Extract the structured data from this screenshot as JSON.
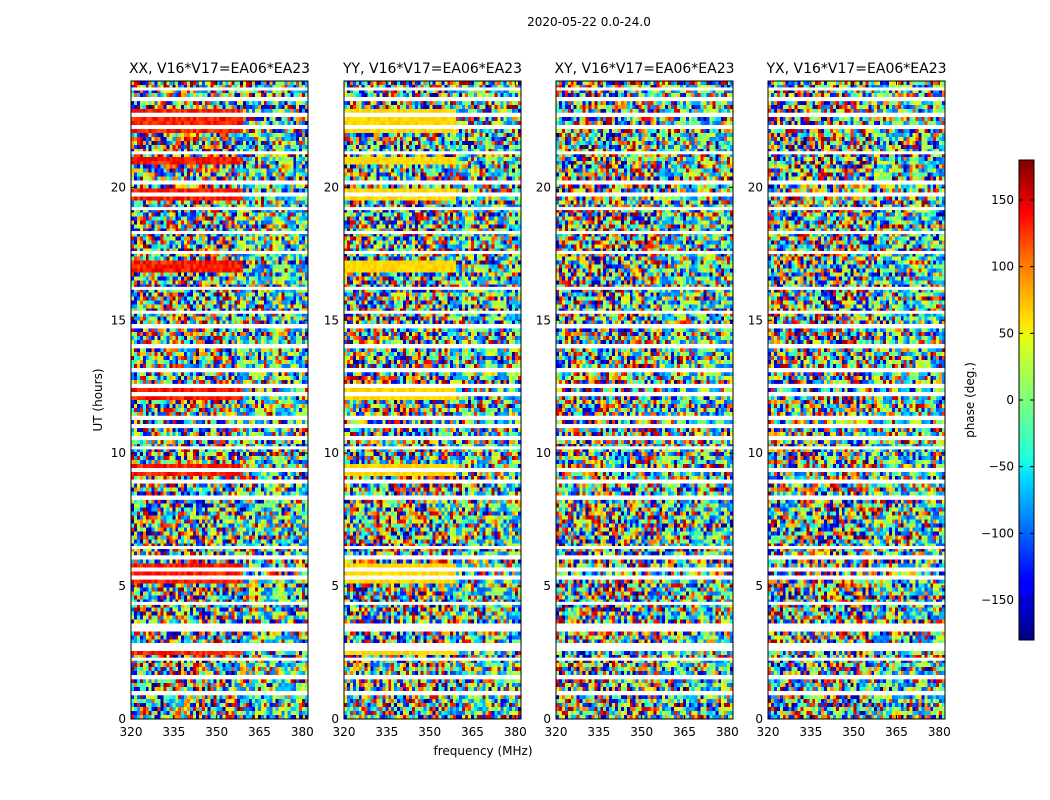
{
  "figure": {
    "suptitle": "2020-05-22 0.0-24.0"
  },
  "chart_data": {
    "type": "heatmap",
    "panels": [
      {
        "title": "XX, V16*V17=EA06*EA23",
        "polarization": "XX"
      },
      {
        "title": "YY, V16*V17=EA06*EA23",
        "polarization": "YY"
      },
      {
        "title": "XY, V16*V17=EA06*EA23",
        "polarization": "XY"
      },
      {
        "title": "YX, V16*V17=EA06*EA23",
        "polarization": "YX"
      }
    ],
    "xlabel": "frequency (MHz)",
    "ylabel": "UT (hours)",
    "x_ticks": [
      320,
      335,
      350,
      365,
      380
    ],
    "x_tick_labels": [
      "320",
      "335",
      "350",
      "365",
      "380"
    ],
    "y_ticks": [
      0,
      5,
      10,
      15,
      20
    ],
    "y_tick_labels": [
      "0",
      "5",
      "10",
      "15",
      "20"
    ],
    "xlim": [
      320,
      382
    ],
    "ylim": [
      0,
      24
    ],
    "colorbar": {
      "label": "phase (deg.)",
      "range": [
        -180,
        180
      ],
      "ticks": [
        -150,
        -100,
        -50,
        0,
        50,
        100,
        150
      ],
      "tick_labels": [
        "−150",
        "−100",
        "−50",
        "0",
        "50",
        "100",
        "150"
      ],
      "colormap": "jet"
    },
    "flagged_hours": [
      0.95,
      1.55,
      2.25,
      2.62,
      2.78,
      3.35,
      3.52,
      4.35,
      5.3,
      5.62,
      6.1,
      6.45,
      8.3,
      8.95,
      9.35,
      10.2,
      10.55,
      11.0,
      11.35,
      12.2,
      12.55,
      13.1,
      14.0,
      14.75,
      15.3,
      16.2,
      17.55,
      18.3,
      19.2,
      19.75,
      20.2,
      21.3,
      22.25,
      22.75,
      23.3,
      23.7
    ],
    "strong_phase_hours": [
      2.62,
      5.3,
      5.62,
      9.35,
      12.2,
      17.05,
      19.75,
      21.0,
      22.25,
      22.75
    ]
  }
}
